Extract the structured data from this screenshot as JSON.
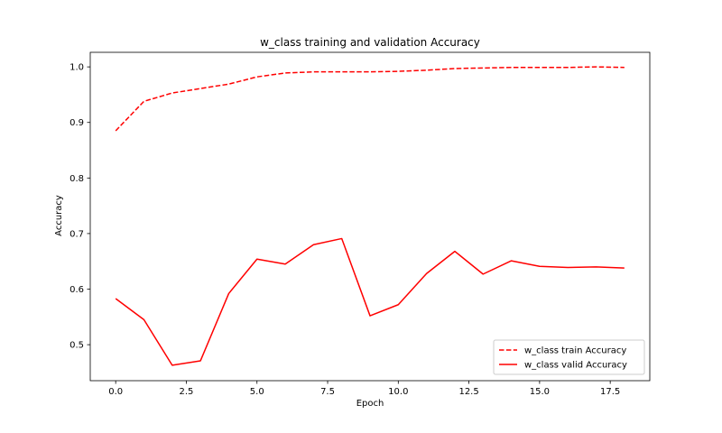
{
  "chart_data": {
    "type": "line",
    "title": "w_class training and validation Accuracy",
    "xlabel": "Epoch",
    "ylabel": "Accuracy",
    "xlim": [
      -0.9,
      18.9
    ],
    "ylim": [
      0.4352,
      1.0262
    ],
    "xticks": [
      0.0,
      2.5,
      5.0,
      7.5,
      10.0,
      12.5,
      15.0,
      17.5
    ],
    "xtick_labels": [
      "0.0",
      "2.5",
      "5.0",
      "7.5",
      "10.0",
      "12.5",
      "15.0",
      "17.5"
    ],
    "yticks": [
      0.5,
      0.6,
      0.7,
      0.8,
      0.9,
      1.0
    ],
    "ytick_labels": [
      "0.5",
      "0.6",
      "0.7",
      "0.8",
      "0.9",
      "1.0"
    ],
    "grid": false,
    "legend_position": "lower-right",
    "x": [
      0,
      1,
      2,
      3,
      4,
      5,
      6,
      7,
      8,
      9,
      10,
      11,
      12,
      13,
      14,
      15,
      16,
      17,
      18
    ],
    "series": [
      {
        "name": "w_class train Accuracy",
        "color": "#ff0000",
        "style": "dashed",
        "values": [
          0.885,
          0.938,
          0.953,
          0.961,
          0.969,
          0.982,
          0.989,
          0.991,
          0.991,
          0.991,
          0.992,
          0.994,
          0.997,
          0.998,
          0.999,
          0.999,
          0.999,
          1.0,
          0.999
        ]
      },
      {
        "name": "w_class valid Accuracy",
        "color": "#ff0000",
        "style": "solid",
        "values": [
          0.583,
          0.545,
          0.463,
          0.471,
          0.592,
          0.654,
          0.645,
          0.68,
          0.691,
          0.552,
          0.572,
          0.628,
          0.668,
          0.627,
          0.651,
          0.641,
          0.639,
          0.64,
          0.638
        ]
      }
    ]
  }
}
